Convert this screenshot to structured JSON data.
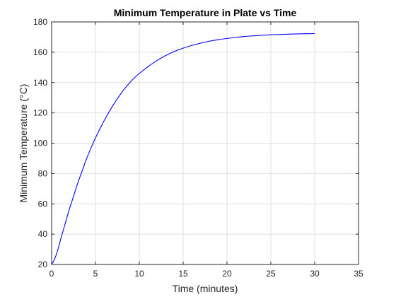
{
  "chart_data": {
    "type": "line",
    "title": "Minimum Temperature in Plate vs Time",
    "xlabel": "Time (minutes)",
    "ylabel": "Minimum Temperature (°C)",
    "xlim": [
      0,
      35
    ],
    "ylim": [
      20,
      180
    ],
    "xticks": [
      0,
      5,
      10,
      15,
      20,
      25,
      30,
      35
    ],
    "yticks": [
      20,
      40,
      60,
      80,
      100,
      120,
      140,
      160,
      180
    ],
    "grid": true,
    "series": [
      {
        "color": "#0000ff",
        "x": [
          0,
          0.25,
          0.5,
          0.75,
          1.0,
          1.5,
          2,
          2.5,
          3,
          3.5,
          4,
          5,
          6,
          7,
          8,
          9,
          10,
          11,
          12,
          13,
          14,
          15,
          16,
          17,
          18,
          19,
          20,
          21,
          22,
          23,
          24,
          25,
          26,
          27,
          28,
          29,
          30
        ],
        "y": [
          20,
          22.5,
          26,
          30.5,
          36,
          46,
          56,
          65,
          74,
          82,
          90,
          103.5,
          115,
          125,
          133.5,
          140.5,
          146,
          150.5,
          154.5,
          157.8,
          160.5,
          162.7,
          164.5,
          166,
          167.3,
          168.3,
          169.1,
          169.8,
          170.4,
          170.8,
          171.2,
          171.5,
          171.7,
          171.9,
          172.1,
          172.2,
          172.3
        ]
      }
    ]
  }
}
